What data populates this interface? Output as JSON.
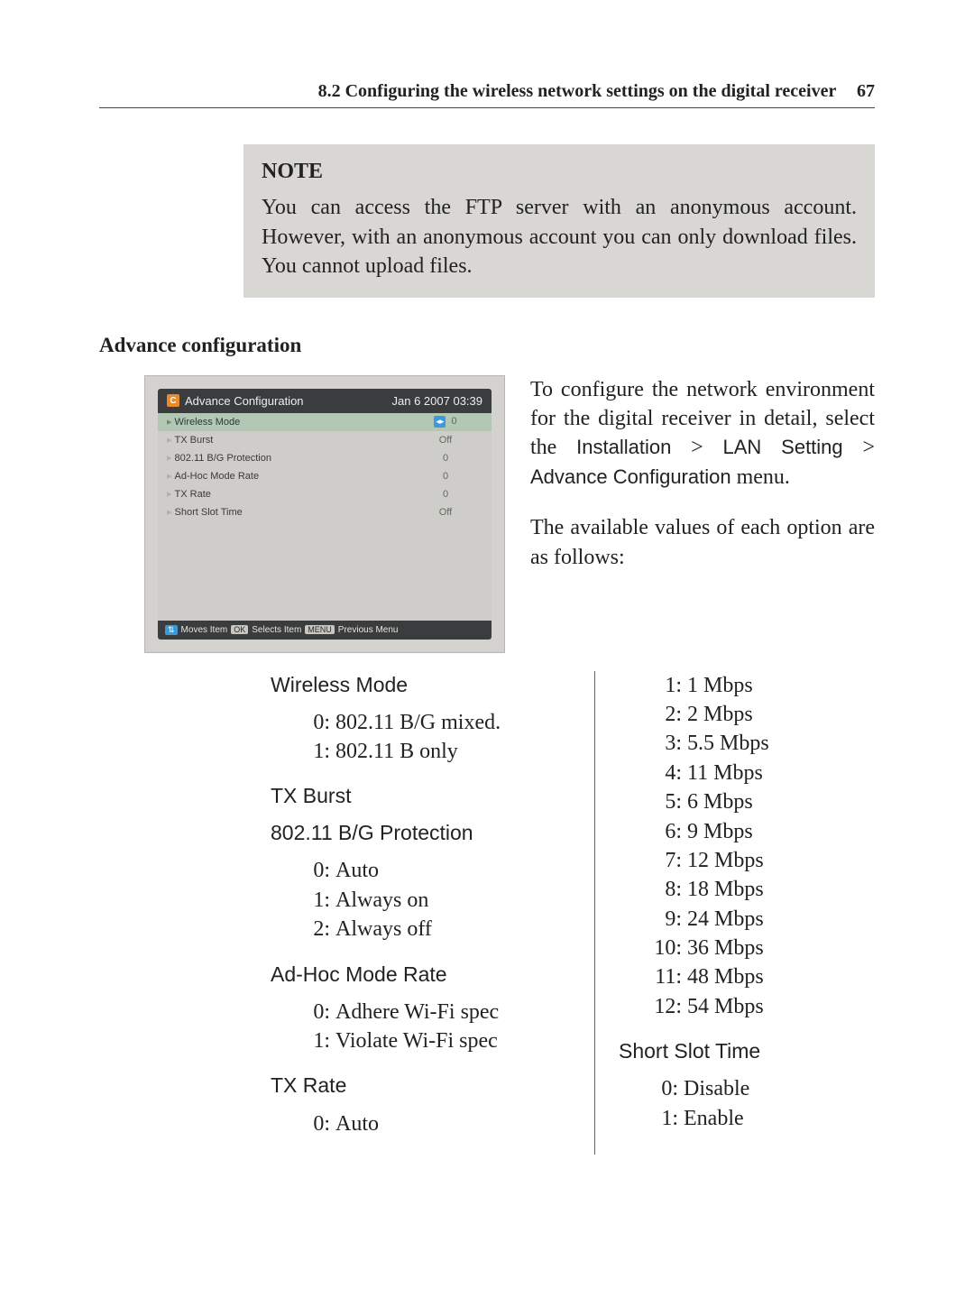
{
  "page": {
    "running_header": "8.2 Configuring the wireless network settings on the digital receiver",
    "page_number": "67"
  },
  "note": {
    "title": "NOTE",
    "body": "You can access the FTP server with an anonymous account. However, with an anonymous account you can only download files. You cannot upload files.",
    "bg_color": "#d9d7d3"
  },
  "section_heading": "Advance configuration",
  "screenshot": {
    "title": "Advance Configuration",
    "timestamp": "Jan 6 2007 03:39",
    "icon_glyph": "C",
    "rows": [
      {
        "label": "Wireless Mode",
        "value": "0",
        "selected": true,
        "has_lr_badge": true
      },
      {
        "label": "TX Burst",
        "value": "Off",
        "selected": false,
        "has_lr_badge": false
      },
      {
        "label": "802.11 B/G Protection",
        "value": "0",
        "selected": false,
        "has_lr_badge": false
      },
      {
        "label": "Ad-Hoc Mode Rate",
        "value": "0",
        "selected": false,
        "has_lr_badge": false
      },
      {
        "label": "TX Rate",
        "value": "0",
        "selected": false,
        "has_lr_badge": false
      },
      {
        "label": "Short Slot Time",
        "value": "Off",
        "selected": false,
        "has_lr_badge": false
      }
    ],
    "help": {
      "badge1": "⇅",
      "text1": "Moves Item",
      "badge2": "OK",
      "text2": "Selects Item",
      "badge3": "MENU",
      "text3": "Previous Menu"
    },
    "colors": {
      "frame_bg": "#d4d2cf",
      "titlebar_bg": "#3a3c3e",
      "rows_bg": "#cfcdca",
      "selected_bg": "#b3c7b5",
      "value_color": "#5b6e5d",
      "badge_blue": "#3a9bdc"
    }
  },
  "side": {
    "p1a": "To configure the network environment for the digital receiver in detail, select the ",
    "p1_path1": "Installation",
    "p1_sep": " > ",
    "p1_path2": "LAN Setting",
    "p1_path3": "Advance Configuration",
    "p1b": " menu.",
    "p2": "The available values of each option are as follows:"
  },
  "options_left": [
    {
      "name": "Wireless Mode",
      "items": [
        {
          "idx": "0:",
          "label": "802.11 B/G mixed."
        },
        {
          "idx": "1:",
          "label": "802.11 B only"
        }
      ]
    },
    {
      "name": "TX Burst",
      "items": []
    },
    {
      "name": "802.11 B/G Protection",
      "items": [
        {
          "idx": "0:",
          "label": "Auto"
        },
        {
          "idx": "1:",
          "label": "Always on"
        },
        {
          "idx": "2:",
          "label": "Always off"
        }
      ]
    },
    {
      "name": "Ad-Hoc Mode Rate",
      "items": [
        {
          "idx": "0:",
          "label": "Adhere Wi-Fi spec"
        },
        {
          "idx": "1:",
          "label": "Violate Wi-Fi spec"
        }
      ]
    },
    {
      "name": "TX Rate",
      "items": [
        {
          "idx": "0:",
          "label": "Auto"
        }
      ]
    }
  ],
  "options_right": {
    "rates": [
      {
        "idx": "1:",
        "label": "1 Mbps"
      },
      {
        "idx": "2:",
        "label": "2 Mbps"
      },
      {
        "idx": "3:",
        "label": "5.5 Mbps"
      },
      {
        "idx": "4:",
        "label": "11 Mbps"
      },
      {
        "idx": "5:",
        "label": "6 Mbps"
      },
      {
        "idx": "6:",
        "label": "9 Mbps"
      },
      {
        "idx": "7:",
        "label": "12 Mbps"
      },
      {
        "idx": "8:",
        "label": "18 Mbps"
      },
      {
        "idx": "9:",
        "label": "24 Mbps"
      },
      {
        "idx": "10:",
        "label": "36 Mbps"
      },
      {
        "idx": "11:",
        "label": "48 Mbps"
      },
      {
        "idx": "12:",
        "label": "54 Mbps"
      }
    ],
    "short_slot": {
      "name": "Short Slot Time",
      "items": [
        {
          "idx": "0:",
          "label": "Disable"
        },
        {
          "idx": "1:",
          "label": "Enable"
        }
      ]
    }
  }
}
